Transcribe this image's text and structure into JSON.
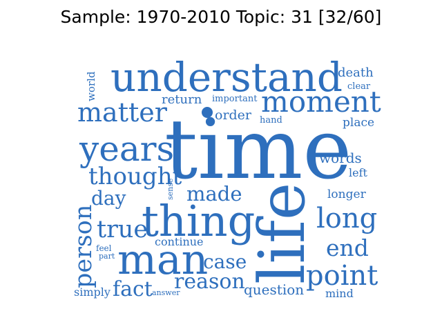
{
  "title": "Sample: 1970-2010 Topic: 31 [32/60]",
  "word_color": "#2e6fbd",
  "words": [
    {
      "text": "time",
      "weight": 1.0
    },
    {
      "text": "life",
      "weight": 0.72
    },
    {
      "text": "understand",
      "weight": 0.6
    },
    {
      "text": "thing",
      "weight": 0.58
    },
    {
      "text": "man",
      "weight": 0.58
    },
    {
      "text": "years",
      "weight": 0.47
    },
    {
      "text": "moment",
      "weight": 0.42
    },
    {
      "text": "point",
      "weight": 0.4
    },
    {
      "text": "long",
      "weight": 0.39
    },
    {
      "text": "matter",
      "weight": 0.38
    },
    {
      "text": "person",
      "weight": 0.37
    },
    {
      "text": "true",
      "weight": 0.35
    },
    {
      "text": "thought",
      "weight": 0.34
    },
    {
      "text": "end",
      "weight": 0.33
    },
    {
      "text": "fact",
      "weight": 0.3
    },
    {
      "text": "reason",
      "weight": 0.3
    },
    {
      "text": "made",
      "weight": 0.29
    },
    {
      "text": "case",
      "weight": 0.28
    },
    {
      "text": "day",
      "weight": 0.27
    },
    {
      "text": "question",
      "weight": 0.2
    },
    {
      "text": "words",
      "weight": 0.19
    },
    {
      "text": "order",
      "weight": 0.19
    },
    {
      "text": "death",
      "weight": 0.18
    },
    {
      "text": "return",
      "weight": 0.18
    },
    {
      "text": "place",
      "weight": 0.17
    },
    {
      "text": "longer",
      "weight": 0.17
    },
    {
      "text": "continue",
      "weight": 0.16
    },
    {
      "text": "mind",
      "weight": 0.16
    },
    {
      "text": "simply",
      "weight": 0.16
    },
    {
      "text": "left",
      "weight": 0.16
    },
    {
      "text": "world",
      "weight": 0.15
    },
    {
      "text": "important",
      "weight": 0.13
    },
    {
      "text": "hand",
      "weight": 0.13
    },
    {
      "text": "clear",
      "weight": 0.13
    },
    {
      "text": "feel",
      "weight": 0.12
    },
    {
      "text": "answer",
      "weight": 0.11
    },
    {
      "text": "part",
      "weight": 0.11
    },
    {
      "text": "sense",
      "weight": 0.11
    }
  ]
}
